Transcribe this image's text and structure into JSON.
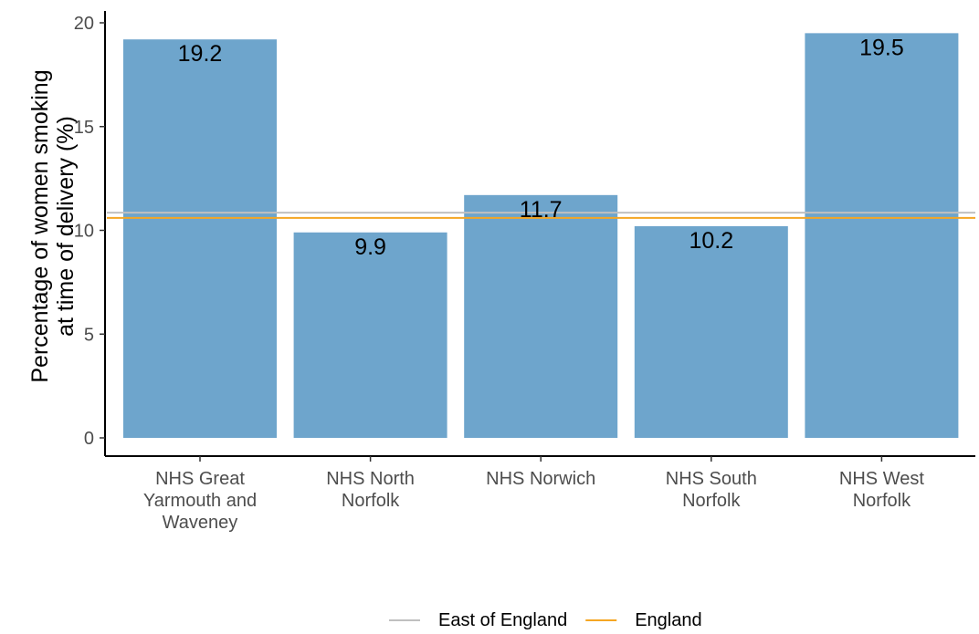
{
  "chart_data": {
    "type": "bar",
    "categories": [
      [
        "NHS Great",
        "Yarmouth and",
        "Waveney"
      ],
      [
        "NHS North",
        "Norfolk"
      ],
      [
        "NHS Norwich"
      ],
      [
        "NHS South",
        "Norfolk"
      ],
      [
        "NHS West",
        "Norfolk"
      ]
    ],
    "values": [
      19.2,
      9.9,
      11.7,
      10.2,
      19.5
    ],
    "value_labels": [
      "19.2",
      "9.9",
      "11.7",
      "10.2",
      "19.5"
    ],
    "ylabel": [
      "Percentage of women smoking",
      "at time of delivery (%)"
    ],
    "xlabel": "",
    "ylim": [
      0,
      20
    ],
    "yticks": [
      0,
      5,
      10,
      15,
      20
    ],
    "grid": false,
    "bar_color": "#6ea5cc",
    "reference_lines": [
      {
        "name": "East of England",
        "value": 10.85,
        "color": "#c0c0c0"
      },
      {
        "name": "England",
        "value": 10.6,
        "color": "#f5a623"
      }
    ],
    "legend": {
      "position": "bottom",
      "entries": [
        "East of England",
        "England"
      ]
    }
  }
}
